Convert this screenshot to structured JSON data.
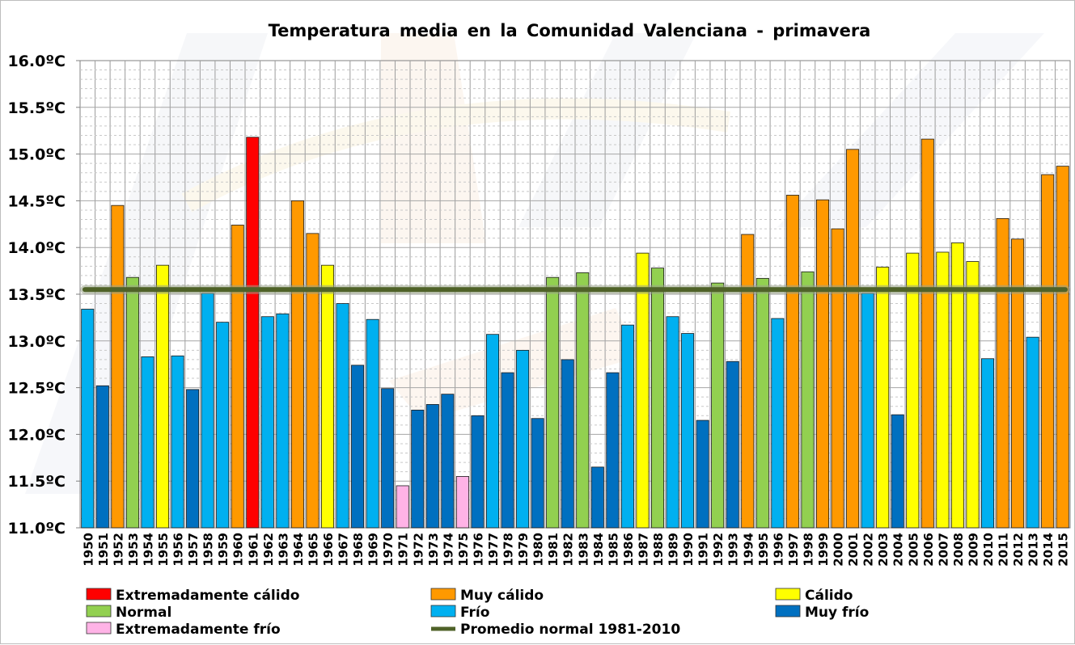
{
  "chart_data": {
    "type": "bar",
    "title": "Temperatura media en la Comunidad Valenciana - primavera",
    "xlabel": "",
    "ylabel": "",
    "ylim": [
      11.0,
      16.0
    ],
    "y_ticks": [
      {
        "value": 11.0,
        "label": "11.0ºC"
      },
      {
        "value": 11.5,
        "label": "11.5ºC"
      },
      {
        "value": 12.0,
        "label": "12.0ºC"
      },
      {
        "value": 12.5,
        "label": "12.5ºC"
      },
      {
        "value": 13.0,
        "label": "13.0ºC"
      },
      {
        "value": 13.5,
        "label": "13.5ºC"
      },
      {
        "value": 14.0,
        "label": "14.0ºC"
      },
      {
        "value": 14.5,
        "label": "14.5ºC"
      },
      {
        "value": 15.0,
        "label": "15.0ºC"
      },
      {
        "value": 15.5,
        "label": "15.5ºC"
      },
      {
        "value": 16.0,
        "label": "16.0ºC"
      }
    ],
    "categories": [
      "1950",
      "1951",
      "1952",
      "1953",
      "1954",
      "1955",
      "1956",
      "1957",
      "1958",
      "1959",
      "1960",
      "1961",
      "1962",
      "1963",
      "1964",
      "1965",
      "1966",
      "1967",
      "1968",
      "1969",
      "1970",
      "1971",
      "1972",
      "1973",
      "1974",
      "1975",
      "1976",
      "1977",
      "1978",
      "1979",
      "1980",
      "1981",
      "1982",
      "1983",
      "1984",
      "1985",
      "1986",
      "1987",
      "1988",
      "1989",
      "1990",
      "1991",
      "1992",
      "1993",
      "1994",
      "1995",
      "1996",
      "1997",
      "1998",
      "1999",
      "2000",
      "2001",
      "2002",
      "2003",
      "2004",
      "2005",
      "2006",
      "2007",
      "2008",
      "2009",
      "2010",
      "2011",
      "2012",
      "2013",
      "2014",
      "2015"
    ],
    "values": [
      13.34,
      12.52,
      14.45,
      13.68,
      12.83,
      13.81,
      12.84,
      12.48,
      13.51,
      13.2,
      14.24,
      15.18,
      13.26,
      13.29,
      14.5,
      14.15,
      13.81,
      13.4,
      12.74,
      13.23,
      12.49,
      11.45,
      12.26,
      12.32,
      12.43,
      11.55,
      12.2,
      13.07,
      12.66,
      12.9,
      12.17,
      13.68,
      12.8,
      13.73,
      11.65,
      12.66,
      13.17,
      13.94,
      13.78,
      13.26,
      13.08,
      12.15,
      13.62,
      12.78,
      14.14,
      13.67,
      13.24,
      14.56,
      13.74,
      14.51,
      14.2,
      15.05,
      13.51,
      13.79,
      12.21,
      13.94,
      15.16,
      13.95,
      14.05,
      13.85,
      12.81,
      14.31,
      14.09,
      13.04,
      14.78,
      14.87
    ],
    "classes": [
      "frio",
      "muy_frio",
      "muy_calido",
      "normal",
      "frio",
      "calido",
      "frio",
      "muy_frio",
      "frio",
      "frio",
      "muy_calido",
      "ext_calido",
      "frio",
      "frio",
      "muy_calido",
      "muy_calido",
      "calido",
      "frio",
      "muy_frio",
      "frio",
      "muy_frio",
      "ext_frio",
      "muy_frio",
      "muy_frio",
      "muy_frio",
      "ext_frio",
      "muy_frio",
      "frio",
      "muy_frio",
      "frio",
      "muy_frio",
      "normal",
      "muy_frio",
      "normal",
      "muy_frio",
      "muy_frio",
      "frio",
      "calido",
      "normal",
      "frio",
      "frio",
      "muy_frio",
      "normal",
      "muy_frio",
      "muy_calido",
      "normal",
      "frio",
      "muy_calido",
      "normal",
      "muy_calido",
      "muy_calido",
      "muy_calido",
      "frio",
      "calido",
      "muy_frio",
      "calido",
      "muy_calido",
      "calido",
      "calido",
      "calido",
      "frio",
      "muy_calido",
      "muy_calido",
      "frio",
      "muy_calido",
      "muy_calido"
    ],
    "reference_line": {
      "label": "Promedio normal 1981-2010",
      "value": 13.55,
      "color": "#4f6228"
    },
    "legend": [
      {
        "key": "ext_calido",
        "label": "Extremadamente cálido",
        "color": "#ff0000"
      },
      {
        "key": "muy_calido",
        "label": "Muy cálido",
        "color": "#ff9900"
      },
      {
        "key": "calido",
        "label": "Cálido",
        "color": "#ffff00"
      },
      {
        "key": "normal",
        "label": "Normal",
        "color": "#92d050"
      },
      {
        "key": "frio",
        "label": "Frío",
        "color": "#00b0f0"
      },
      {
        "key": "muy_frio",
        "label": "Muy frío",
        "color": "#0070c0"
      },
      {
        "key": "ext_frio",
        "label": "Extremadamente frío",
        "color": "#ffb3e6"
      },
      {
        "key": "promedio",
        "label": "Promedio normal 1981-2010",
        "color": "#4f6228"
      }
    ]
  }
}
